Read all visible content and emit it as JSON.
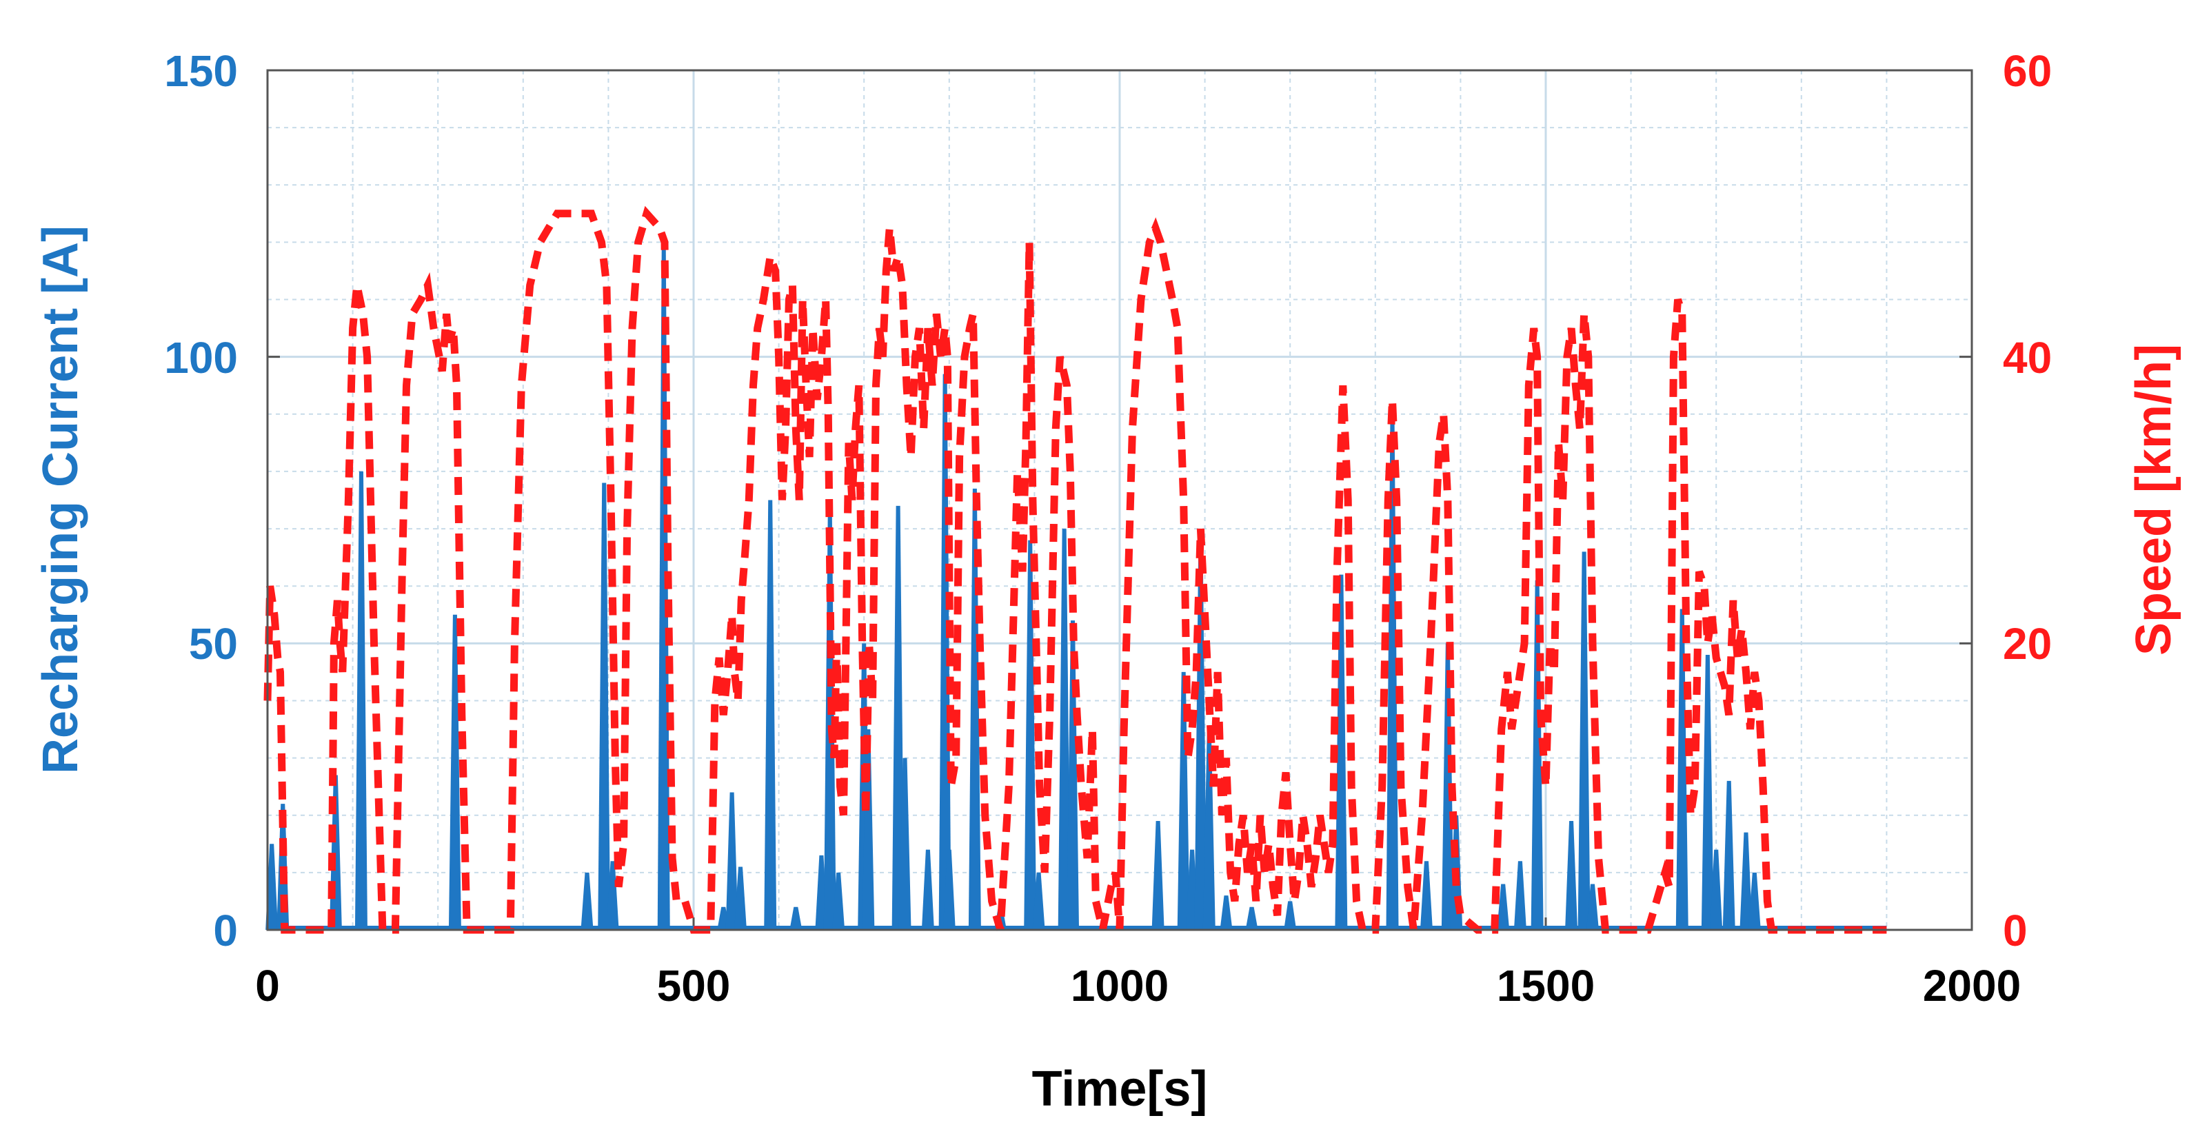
{
  "chart_data": {
    "type": "line",
    "title": "",
    "xlabel": "Time[s]",
    "ylabel_left": "Recharging Current [A]",
    "ylabel_right": "Speed [km/h]",
    "xlim": [
      0,
      2000
    ],
    "ylim_left": [
      0,
      150
    ],
    "ylim_right": [
      0,
      60
    ],
    "x_ticks": [
      "0",
      "500",
      "1000",
      "1500",
      "2000"
    ],
    "y_ticks_left": [
      "0",
      "50",
      "100",
      "150"
    ],
    "y_ticks_right": [
      "0",
      "20",
      "40",
      "60"
    ],
    "grid": true,
    "colors": {
      "current": "#1f77c4",
      "speed": "#ff1a1a",
      "grid": "#c7dbe9"
    },
    "series": [
      {
        "name": "Recharging Current",
        "axis": "left",
        "style": "solid",
        "spikes": [
          [
            5,
            15
          ],
          [
            18,
            22
          ],
          [
            80,
            27
          ],
          [
            110,
            80
          ],
          [
            220,
            55
          ],
          [
            375,
            10
          ],
          [
            395,
            78
          ],
          [
            405,
            12
          ],
          [
            465,
            119
          ],
          [
            535,
            4
          ],
          [
            545,
            24
          ],
          [
            555,
            11
          ],
          [
            590,
            75
          ],
          [
            620,
            4
          ],
          [
            650,
            13
          ],
          [
            660,
            73
          ],
          [
            670,
            10
          ],
          [
            700,
            50
          ],
          [
            705,
            35
          ],
          [
            740,
            74
          ],
          [
            748,
            30
          ],
          [
            775,
            14
          ],
          [
            795,
            97
          ],
          [
            800,
            14
          ],
          [
            830,
            77
          ],
          [
            860,
            4
          ],
          [
            895,
            68
          ],
          [
            905,
            10
          ],
          [
            935,
            70
          ],
          [
            945,
            54
          ],
          [
            1045,
            19
          ],
          [
            1075,
            45
          ],
          [
            1085,
            14
          ],
          [
            1095,
            69
          ],
          [
            1105,
            35
          ],
          [
            1125,
            6
          ],
          [
            1155,
            4
          ],
          [
            1200,
            5
          ],
          [
            1260,
            62
          ],
          [
            1320,
            90
          ],
          [
            1360,
            12
          ],
          [
            1385,
            50
          ],
          [
            1395,
            20
          ],
          [
            1450,
            8
          ],
          [
            1470,
            12
          ],
          [
            1490,
            61
          ],
          [
            1530,
            19
          ],
          [
            1545,
            66
          ],
          [
            1555,
            8
          ],
          [
            1660,
            56
          ],
          [
            1690,
            48
          ],
          [
            1700,
            14
          ],
          [
            1715,
            26
          ],
          [
            1735,
            17
          ],
          [
            1745,
            10
          ]
        ]
      },
      {
        "name": "Speed",
        "axis": "right",
        "style": "dashed",
        "points": [
          [
            0,
            16
          ],
          [
            3,
            24
          ],
          [
            8,
            22
          ],
          [
            12,
            19
          ],
          [
            15,
            18
          ],
          [
            20,
            0
          ],
          [
            75,
            0
          ],
          [
            78,
            20
          ],
          [
            82,
            23
          ],
          [
            85,
            20
          ],
          [
            88,
            18
          ],
          [
            95,
            30
          ],
          [
            100,
            42
          ],
          [
            105,
            45
          ],
          [
            112,
            43
          ],
          [
            117,
            40
          ],
          [
            125,
            20
          ],
          [
            135,
            0
          ],
          [
            150,
            0
          ],
          [
            158,
            25
          ],
          [
            163,
            38
          ],
          [
            170,
            43
          ],
          [
            180,
            44
          ],
          [
            188,
            45
          ],
          [
            195,
            42
          ],
          [
            205,
            39
          ],
          [
            210,
            43
          ],
          [
            213,
            41
          ],
          [
            218,
            42
          ],
          [
            222,
            38
          ],
          [
            228,
            15
          ],
          [
            234,
            0
          ],
          [
            285,
            0
          ],
          [
            290,
            20
          ],
          [
            298,
            38
          ],
          [
            308,
            45
          ],
          [
            320,
            48
          ],
          [
            340,
            50
          ],
          [
            380,
            50
          ],
          [
            392,
            48
          ],
          [
            398,
            45
          ],
          [
            403,
            30
          ],
          [
            408,
            12
          ],
          [
            412,
            3
          ],
          [
            418,
            6
          ],
          [
            422,
            28
          ],
          [
            428,
            42
          ],
          [
            435,
            48
          ],
          [
            445,
            50
          ],
          [
            460,
            49
          ],
          [
            466,
            48
          ],
          [
            470,
            25
          ],
          [
            475,
            5
          ],
          [
            480,
            2
          ],
          [
            490,
            2
          ],
          [
            500,
            0
          ],
          [
            520,
            0
          ],
          [
            525,
            16
          ],
          [
            530,
            19
          ],
          [
            535,
            15
          ],
          [
            540,
            18
          ],
          [
            545,
            22
          ],
          [
            548,
            18
          ],
          [
            552,
            16
          ],
          [
            556,
            23
          ],
          [
            560,
            26
          ],
          [
            565,
            30
          ],
          [
            570,
            38
          ],
          [
            575,
            42
          ],
          [
            582,
            44
          ],
          [
            590,
            47
          ],
          [
            596,
            46
          ],
          [
            600,
            40
          ],
          [
            604,
            30
          ],
          [
            608,
            35
          ],
          [
            612,
            44
          ],
          [
            616,
            45
          ],
          [
            620,
            35
          ],
          [
            624,
            30
          ],
          [
            628,
            44
          ],
          [
            632,
            38
          ],
          [
            636,
            33
          ],
          [
            640,
            42
          ],
          [
            645,
            37
          ],
          [
            650,
            40
          ],
          [
            655,
            44
          ],
          [
            658,
            36
          ],
          [
            662,
            14
          ],
          [
            665,
            12
          ],
          [
            668,
            20
          ],
          [
            672,
            10
          ],
          [
            676,
            8
          ],
          [
            682,
            34
          ],
          [
            686,
            30
          ],
          [
            690,
            35
          ],
          [
            694,
            38
          ],
          [
            698,
            20
          ],
          [
            702,
            8
          ],
          [
            706,
            20
          ],
          [
            710,
            16
          ],
          [
            714,
            38
          ],
          [
            718,
            42
          ],
          [
            722,
            40
          ],
          [
            726,
            46
          ],
          [
            730,
            49
          ],
          [
            735,
            46
          ],
          [
            740,
            47
          ],
          [
            745,
            45
          ],
          [
            750,
            38
          ],
          [
            755,
            33
          ],
          [
            760,
            40
          ],
          [
            765,
            42
          ],
          [
            770,
            35
          ],
          [
            775,
            42
          ],
          [
            780,
            38
          ],
          [
            785,
            43
          ],
          [
            790,
            40
          ],
          [
            795,
            42
          ],
          [
            798,
            40
          ],
          [
            802,
            10
          ],
          [
            808,
            12
          ],
          [
            812,
            33
          ],
          [
            818,
            40
          ],
          [
            824,
            42
          ],
          [
            828,
            43
          ],
          [
            832,
            30
          ],
          [
            836,
            20
          ],
          [
            842,
            8
          ],
          [
            850,
            2
          ],
          [
            860,
            0
          ],
          [
            870,
            10
          ],
          [
            880,
            32
          ],
          [
            886,
            25
          ],
          [
            890,
            34
          ],
          [
            894,
            48
          ],
          [
            898,
            30
          ],
          [
            902,
            20
          ],
          [
            906,
            10
          ],
          [
            912,
            4
          ],
          [
            918,
            15
          ],
          [
            925,
            35
          ],
          [
            930,
            40
          ],
          [
            938,
            38
          ],
          [
            942,
            32
          ],
          [
            946,
            20
          ],
          [
            950,
            15
          ],
          [
            955,
            10
          ],
          [
            962,
            5
          ],
          [
            968,
            14
          ],
          [
            972,
            2
          ],
          [
            980,
            0
          ],
          [
            990,
            3
          ],
          [
            995,
            4
          ],
          [
            1000,
            0
          ],
          [
            1005,
            14
          ],
          [
            1015,
            35
          ],
          [
            1025,
            44
          ],
          [
            1035,
            48
          ],
          [
            1042,
            49
          ],
          [
            1048,
            48
          ],
          [
            1055,
            46
          ],
          [
            1062,
            44
          ],
          [
            1068,
            42
          ],
          [
            1075,
            30
          ],
          [
            1080,
            12
          ],
          [
            1085,
            14
          ],
          [
            1090,
            18
          ],
          [
            1095,
            28
          ],
          [
            1100,
            22
          ],
          [
            1105,
            16
          ],
          [
            1110,
            10
          ],
          [
            1115,
            18
          ],
          [
            1120,
            8
          ],
          [
            1125,
            12
          ],
          [
            1130,
            4
          ],
          [
            1135,
            2
          ],
          [
            1140,
            6
          ],
          [
            1145,
            8
          ],
          [
            1150,
            4
          ],
          [
            1155,
            6
          ],
          [
            1160,
            2
          ],
          [
            1165,
            8
          ],
          [
            1170,
            4
          ],
          [
            1175,
            6
          ],
          [
            1180,
            3
          ],
          [
            1185,
            1
          ],
          [
            1190,
            8
          ],
          [
            1195,
            11
          ],
          [
            1200,
            6
          ],
          [
            1205,
            2
          ],
          [
            1210,
            4
          ],
          [
            1215,
            8
          ],
          [
            1220,
            6
          ],
          [
            1225,
            3
          ],
          [
            1230,
            5
          ],
          [
            1235,
            8
          ],
          [
            1240,
            6
          ],
          [
            1245,
            4
          ],
          [
            1250,
            6
          ],
          [
            1255,
            25
          ],
          [
            1262,
            38
          ],
          [
            1268,
            30
          ],
          [
            1272,
            10
          ],
          [
            1278,
            2
          ],
          [
            1285,
            0
          ],
          [
            1300,
            0
          ],
          [
            1308,
            10
          ],
          [
            1315,
            30
          ],
          [
            1320,
            37
          ],
          [
            1325,
            30
          ],
          [
            1330,
            10
          ],
          [
            1338,
            3
          ],
          [
            1345,
            0
          ],
          [
            1355,
            8
          ],
          [
            1365,
            20
          ],
          [
            1375,
            34
          ],
          [
            1380,
            36
          ],
          [
            1385,
            30
          ],
          [
            1390,
            10
          ],
          [
            1395,
            3
          ],
          [
            1400,
            1
          ],
          [
            1420,
            0
          ],
          [
            1440,
            0
          ],
          [
            1448,
            14
          ],
          [
            1455,
            18
          ],
          [
            1460,
            14
          ],
          [
            1465,
            16
          ],
          [
            1470,
            18
          ],
          [
            1475,
            20
          ],
          [
            1480,
            38
          ],
          [
            1486,
            42
          ],
          [
            1490,
            40
          ],
          [
            1494,
            15
          ],
          [
            1500,
            10
          ],
          [
            1505,
            20
          ],
          [
            1510,
            18
          ],
          [
            1515,
            34
          ],
          [
            1520,
            30
          ],
          [
            1525,
            40
          ],
          [
            1530,
            42
          ],
          [
            1535,
            38
          ],
          [
            1540,
            35
          ],
          [
            1545,
            43
          ],
          [
            1550,
            40
          ],
          [
            1555,
            20
          ],
          [
            1562,
            5
          ],
          [
            1570,
            0
          ],
          [
            1620,
            0
          ],
          [
            1630,
            2
          ],
          [
            1640,
            4
          ],
          [
            1645,
            3
          ],
          [
            1650,
            40
          ],
          [
            1655,
            44
          ],
          [
            1660,
            43
          ],
          [
            1665,
            20
          ],
          [
            1670,
            8
          ],
          [
            1675,
            10
          ],
          [
            1680,
            25
          ],
          [
            1686,
            24
          ],
          [
            1690,
            20
          ],
          [
            1695,
            22
          ],
          [
            1700,
            19
          ],
          [
            1705,
            18
          ],
          [
            1710,
            17
          ],
          [
            1715,
            15
          ],
          [
            1720,
            23
          ],
          [
            1725,
            19
          ],
          [
            1730,
            21
          ],
          [
            1735,
            18
          ],
          [
            1740,
            14
          ],
          [
            1745,
            18
          ],
          [
            1750,
            16
          ],
          [
            1755,
            10
          ],
          [
            1760,
            2
          ],
          [
            1765,
            0
          ],
          [
            1900,
            0
          ]
        ]
      }
    ]
  }
}
